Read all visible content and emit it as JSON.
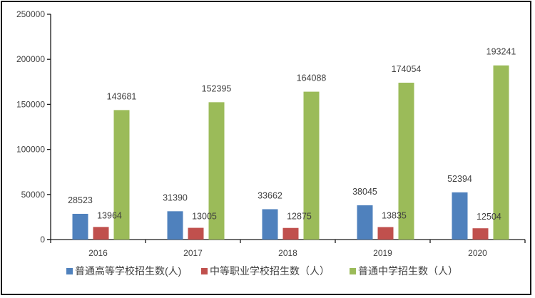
{
  "chart_data": {
    "type": "bar",
    "title": "",
    "xlabel": "",
    "ylabel": "",
    "categories": [
      "2016",
      "2017",
      "2018",
      "2019",
      "2020"
    ],
    "series": [
      {
        "name": "普通高等学校招生数(人)",
        "color": "#4f81bd",
        "values": [
          28523,
          31390,
          33662,
          38045,
          52394
        ]
      },
      {
        "name": "中等职业学校招生数（人）",
        "color": "#c0504d",
        "values": [
          13964,
          13005,
          12875,
          13835,
          12504
        ]
      },
      {
        "name": "普通中学招生数（人）",
        "color": "#9bbb59",
        "values": [
          143681,
          152395,
          164088,
          174054,
          193241
        ]
      }
    ],
    "ylim": [
      0,
      250000
    ],
    "yticks": [
      0,
      50000,
      100000,
      150000,
      200000,
      250000
    ],
    "ytick_labels": [
      "0",
      "50000",
      "100000",
      "150000",
      "200000",
      "250000"
    ],
    "grid": false,
    "legend_position": "bottom",
    "data_labels": true
  }
}
